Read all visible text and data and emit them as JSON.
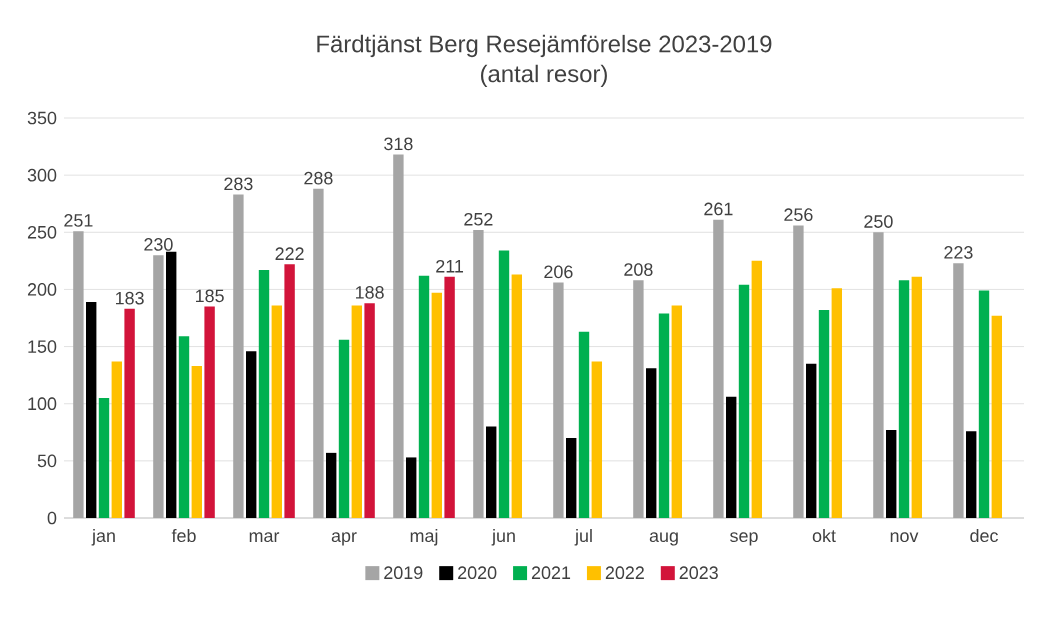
{
  "chart_data": {
    "type": "bar",
    "title": "Färdtjänst Berg Resejämförelse 2023-2019",
    "subtitle": "(antal resor)",
    "categories": [
      "jan",
      "feb",
      "mar",
      "apr",
      "maj",
      "jun",
      "jul",
      "aug",
      "sep",
      "okt",
      "nov",
      "dec"
    ],
    "series": [
      {
        "name": "2019",
        "color": "#a5a5a5",
        "values": [
          251,
          230,
          283,
          288,
          318,
          252,
          206,
          208,
          261,
          256,
          250,
          223
        ],
        "value_labels": [
          "251",
          "230",
          "283",
          "288",
          "318",
          "252",
          "206",
          "208",
          "261",
          "256",
          "250",
          "223"
        ]
      },
      {
        "name": "2020",
        "color": "#000000",
        "values": [
          189,
          233,
          146,
          57,
          53,
          80,
          70,
          131,
          106,
          135,
          77,
          76
        ]
      },
      {
        "name": "2021",
        "color": "#00b050",
        "values": [
          105,
          159,
          217,
          156,
          212,
          234,
          163,
          179,
          204,
          182,
          208,
          199
        ]
      },
      {
        "name": "2022",
        "color": "#ffc000",
        "values": [
          137,
          133,
          186,
          186,
          197,
          213,
          137,
          186,
          225,
          201,
          211,
          177
        ]
      },
      {
        "name": "2023",
        "color": "#d2143a",
        "values": [
          183,
          185,
          222,
          188,
          211,
          null,
          null,
          null,
          null,
          null,
          null,
          null
        ],
        "value_labels": [
          "183",
          "185",
          "222",
          "188",
          "211",
          null,
          null,
          null,
          null,
          null,
          null,
          null
        ]
      }
    ],
    "ylim": [
      0,
      350
    ],
    "yticks": [
      0,
      50,
      100,
      150,
      200,
      250,
      300,
      350
    ],
    "grid": "y",
    "legend": "bottom"
  }
}
